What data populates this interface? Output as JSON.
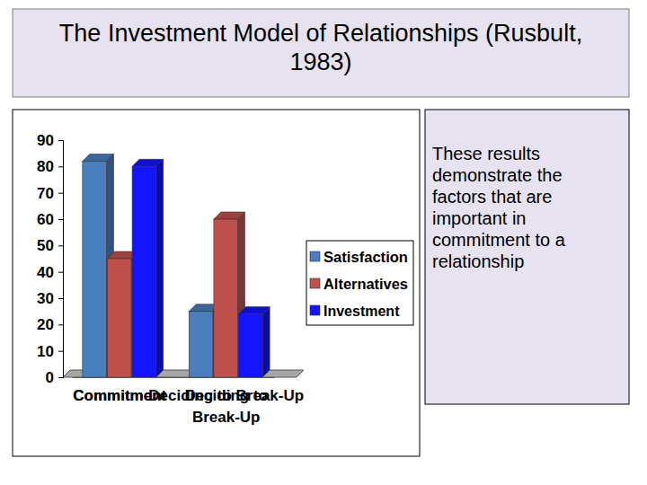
{
  "chart_data": {
    "type": "bar",
    "title": "The Investment Model of Relationships (Rusbult, 1983)",
    "categories": [
      "Commitment",
      "Deciding to Break-Up"
    ],
    "series": [
      {
        "name": "Satisfaction",
        "color": "#4a7ebf",
        "values": [
          82,
          25
        ]
      },
      {
        "name": "Alternatives",
        "color": "#c0504d",
        "values": [
          45,
          60
        ]
      },
      {
        "name": "Investment",
        "color": "#1414ff",
        "values": [
          80,
          24
        ]
      }
    ],
    "ylim": [
      0,
      90
    ],
    "yticks": [
      0,
      10,
      20,
      30,
      40,
      50,
      60,
      70,
      80,
      90
    ],
    "grid": false,
    "legend": "right",
    "annotations": [
      "These results demonstrate the factors that are important in commitment to a relationship"
    ]
  }
}
